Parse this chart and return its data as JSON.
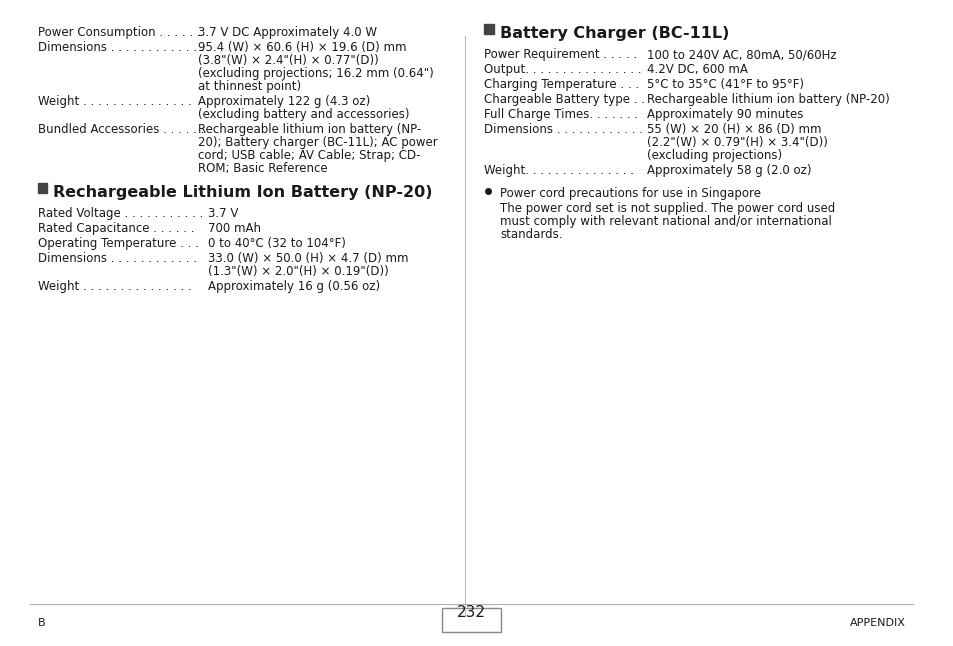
{
  "bg_color": "#ffffff",
  "page_number": "232",
  "footer_left": "B",
  "footer_right": "APPENDIX",
  "left_column": {
    "intro_specs": [
      {
        "label": "Power Consumption",
        "dots": " . . . . . .",
        "value": "3.7 V DC Approximately 4.0 W"
      },
      {
        "label": "Dimensions",
        "dots": " . . . . . . . . . . . . .",
        "value": "95.4 (W) × 60.6 (H) × 19.6 (D) mm",
        "value2": "(3.8\"(W) × 2.4\"(H) × 0.77\"(D))",
        "value3": "(excluding projections; 16.2 mm (0.64\")",
        "value4": "at thinnest point)"
      },
      {
        "label": "Weight",
        "dots": " . . . . . . . . . . . . . . .",
        "value": "Approximately 122 g (4.3 oz)",
        "value2": "(excluding battery and accessories)"
      },
      {
        "label": "Bundled Accessories",
        "dots": " . . . . . .",
        "value": "Rechargeable lithium ion battery (NP-",
        "value2": "20); Battery charger (BC-11L); AC power",
        "value3": "cord; USB cable; AV Cable; Strap; CD-",
        "value4": "ROM; Basic Reference"
      }
    ],
    "section1_title": "Rechargeable Lithium Ion Battery (NP-20)",
    "section1_specs": [
      {
        "label": "Rated Voltage",
        "dots": " . . . . . . . . . . .",
        "value": "3.7 V"
      },
      {
        "label": "Rated Capacitance",
        "dots": " . . . . . .",
        "value": "700 mAh"
      },
      {
        "label": "Operating Temperature",
        "dots": " . . .",
        "value": "0 to 40°C (32 to 104°F)"
      },
      {
        "label": "Dimensions",
        "dots": " . . . . . . . . . . . .",
        "value": "33.0 (W) × 50.0 (H) × 4.7 (D) mm",
        "value2": "(1.3\"(W) × 2.0\"(H) × 0.19\"(D))"
      },
      {
        "label": "Weight",
        "dots": " . . . . . . . . . . . . . . .",
        "value": "Approximately 16 g (0.56 oz)"
      }
    ]
  },
  "right_column": {
    "section2_title": "Battery Charger (BC-11L)",
    "section2_specs": [
      {
        "label": "Power Requirement",
        "dots": " . . . . .",
        "value": "100 to 240V AC, 80mA, 50/60Hz"
      },
      {
        "label": "Output",
        "dots": ". . . . . . . . . . . . . . . .",
        "value": "4.2V DC, 600 mA"
      },
      {
        "label": "Charging Temperature",
        "dots": " . . .",
        "value": "5°C to 35°C (41°F to 95°F)"
      },
      {
        "label": "Chargeable Battery type",
        "dots": " . .",
        "value": "Rechargeable lithium ion battery (NP-20)"
      },
      {
        "label": "Full Charge Times.",
        "dots": " . . . . . .",
        "value": "Approximately 90 minutes"
      },
      {
        "label": "Dimensions",
        "dots": " . . . . . . . . . . . .",
        "value": "55 (W) × 20 (H) × 86 (D) mm",
        "value2": "(2.2\"(W) × 0.79\"(H) × 3.4\"(D))",
        "value3": "(excluding projections)"
      },
      {
        "label": "Weight.",
        "dots": " . . . . . . . . . . . . . .",
        "value": "Approximately 58 g (2.0 oz)"
      }
    ],
    "bullet_title": "Power cord precautions for use in Singapore",
    "bullet_text": "The power cord set is not supplied. The power cord used\nmust comply with relevant national and/or international\nstandards."
  }
}
